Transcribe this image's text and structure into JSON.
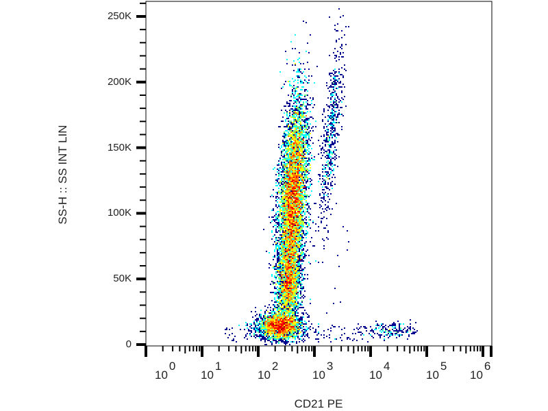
{
  "chart_data": {
    "type": "scatter",
    "subtype": "flow-cytometry density dot plot",
    "xlabel": "CD21 PE",
    "ylabel": "SS-H :: SS INT LIN",
    "x_scale": "log",
    "xlim": [
      1,
      1000000
    ],
    "ylim": [
      0,
      260000
    ],
    "x_tick_labels": [
      {
        "base": "10",
        "exp": "0"
      },
      {
        "base": "10",
        "exp": "1"
      },
      {
        "base": "10",
        "exp": "2"
      },
      {
        "base": "10",
        "exp": "3"
      },
      {
        "base": "10",
        "exp": "4"
      },
      {
        "base": "10",
        "exp": "5"
      },
      {
        "base": "10",
        "exp": "6"
      }
    ],
    "y_ticks": [
      0,
      50000,
      100000,
      150000,
      200000,
      250000
    ],
    "y_tick_labels": [
      "0",
      "50K",
      "100K",
      "150K",
      "200K",
      "250K"
    ],
    "grid": false,
    "colormap": [
      "#00008f",
      "#0000ff",
      "#00a0ff",
      "#00ffff",
      "#70ff80",
      "#ffff00",
      "#ff8000",
      "#ff0000",
      "#a00000"
    ],
    "populations": [
      {
        "x_center": 410,
        "y_center": 110000,
        "y_spread": 38000,
        "x_spread_decades": 0.12,
        "count": 9000
      },
      {
        "x_center": 355,
        "y_center": 45000,
        "y_spread": 15000,
        "x_spread_decades": 0.1,
        "count": 2000
      },
      {
        "x_center": 240,
        "y_center": 14000,
        "y_spread": 5000,
        "x_spread_decades": 0.15,
        "count": 2500
      },
      {
        "x_center": 1950,
        "y_center": 160000,
        "y_spread": 35000,
        "x_spread_decades": 0.07,
        "count": 600
      },
      {
        "x_center": 25000,
        "y_center": 11000,
        "y_spread": 3000,
        "x_spread_decades": 0.22,
        "count": 150
      }
    ]
  }
}
